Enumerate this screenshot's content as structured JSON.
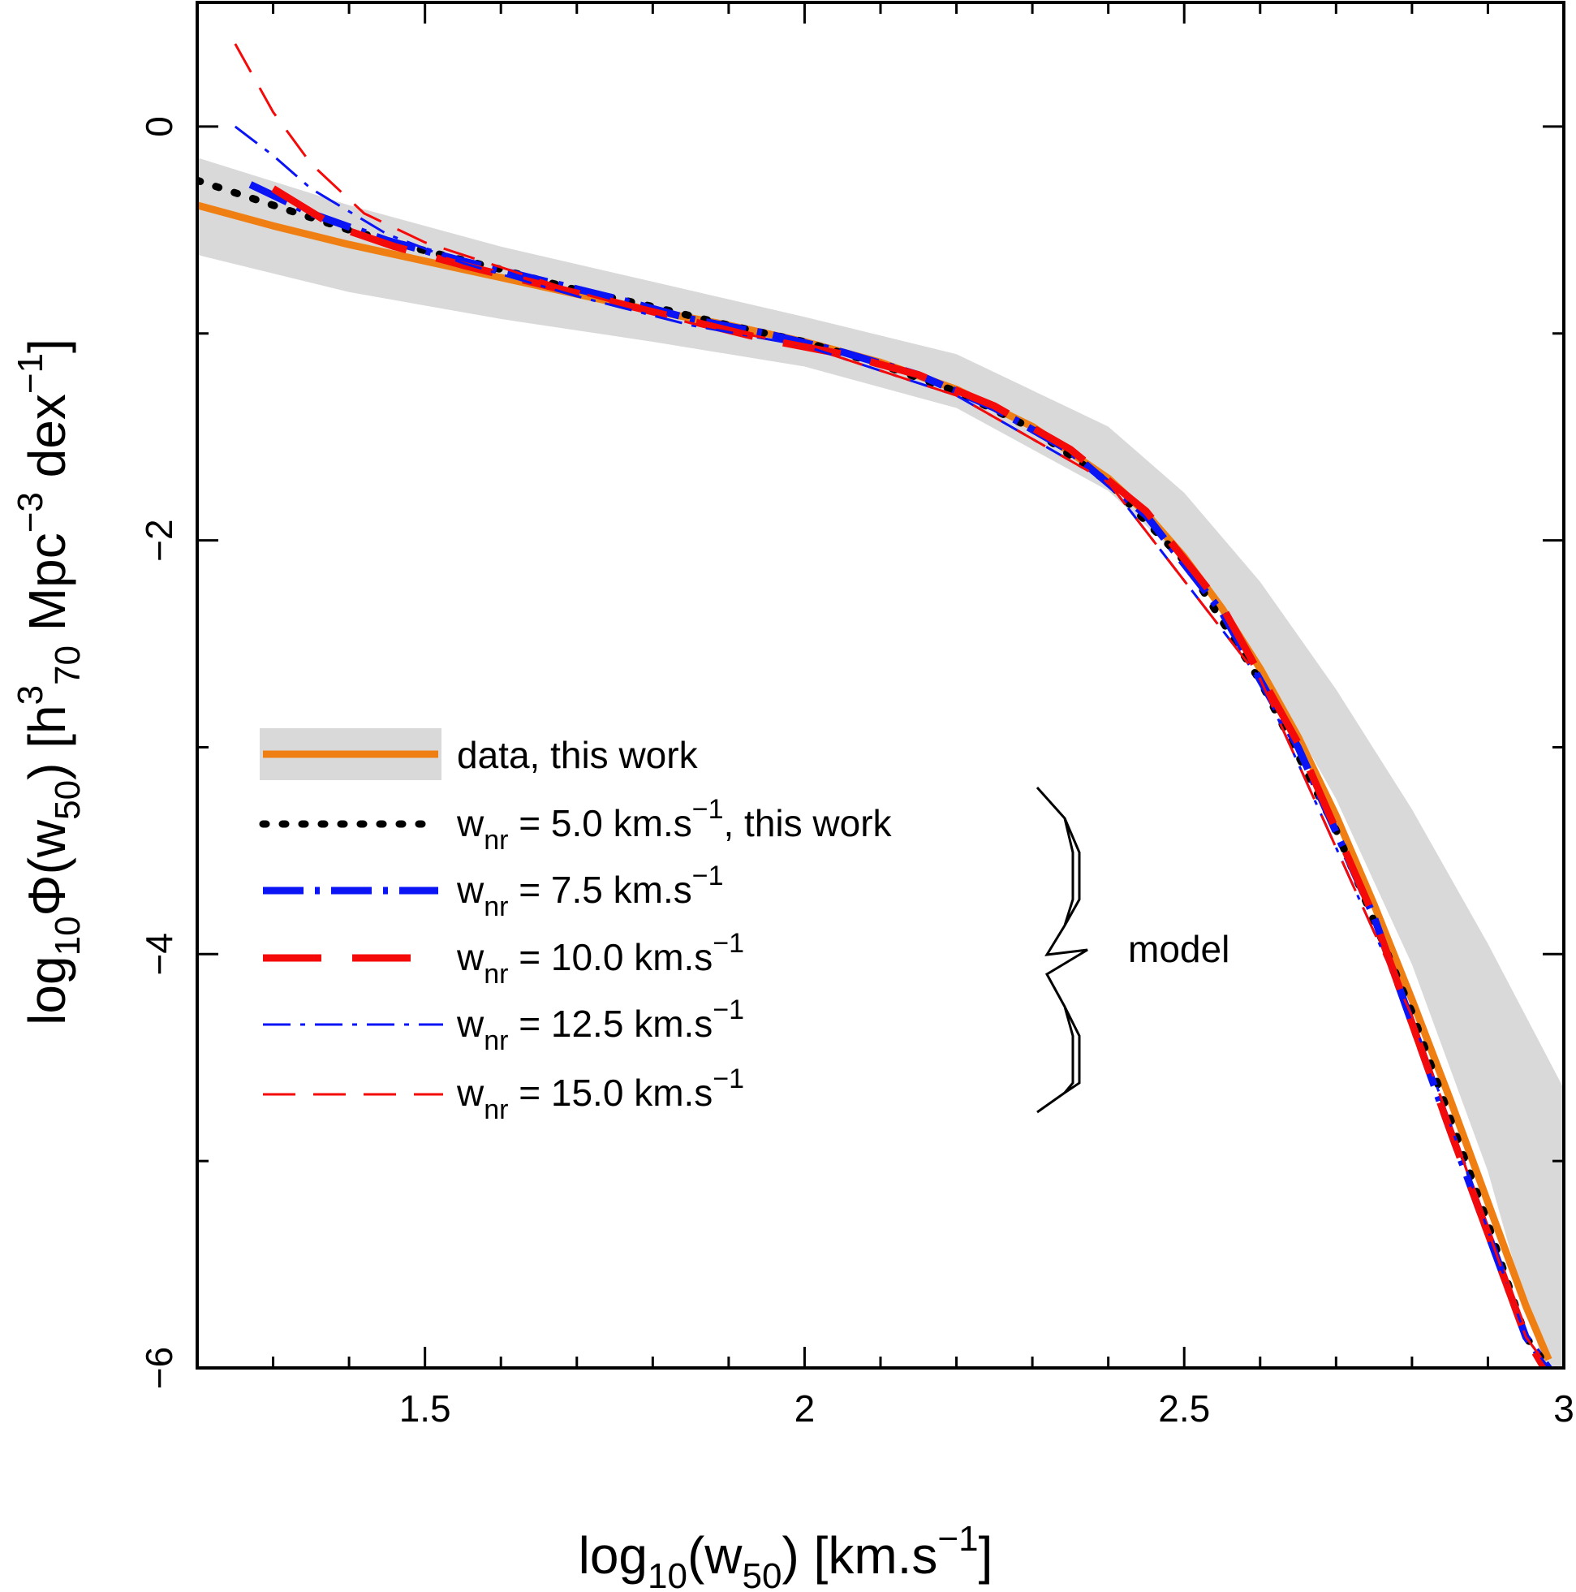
{
  "chart_data": {
    "type": "line",
    "title": "",
    "xlabel": {
      "main": "log",
      "sub": "10",
      "paren": "(w",
      "paren_sub": "50",
      "unit": ")  [km.s",
      "unit_sup": "−1",
      "close": "]"
    },
    "ylabel": {
      "main": "log",
      "sub": "10",
      "phi": "Φ(w",
      "phi_sub": "50",
      "unit1": ")  [h",
      "sup3": "3",
      "sub70": "70",
      "unit2": " Mpc",
      "sup_m3": "−3",
      "unit3": " dex",
      "sup_m1": "−1",
      "close": "]"
    },
    "xlim": [
      1.2,
      3.0
    ],
    "ylim": [
      -6.0,
      0.6
    ],
    "xticks": [
      {
        "v": 1.5,
        "label": "1.5"
      },
      {
        "v": 2.0,
        "label": "2"
      },
      {
        "v": 2.5,
        "label": "2.5"
      },
      {
        "v": 3.0,
        "label": "3"
      }
    ],
    "yticks": [
      {
        "v": 0,
        "label": "0"
      },
      {
        "v": -2,
        "label": "−2"
      },
      {
        "v": -4,
        "label": "−4"
      },
      {
        "v": -6,
        "label": "−6"
      }
    ],
    "x_minor_step": 0.1,
    "y_minor_step": 1.0,
    "band": {
      "name": "data, this work (uncertainty)",
      "color": "#d9d9d9",
      "x": [
        1.2,
        1.4,
        1.6,
        1.8,
        2.0,
        2.2,
        2.4,
        2.5,
        2.6,
        2.7,
        2.8,
        2.9,
        2.95,
        3.0
      ],
      "upper": [
        -0.15,
        -0.38,
        -0.58,
        -0.75,
        -0.92,
        -1.1,
        -1.45,
        -1.77,
        -2.2,
        -2.72,
        -3.3,
        -3.95,
        -4.3,
        -4.65
      ],
      "lower": [
        -0.62,
        -0.8,
        -0.93,
        -1.04,
        -1.16,
        -1.36,
        -1.76,
        -2.1,
        -2.6,
        -3.25,
        -4.05,
        -5.05,
        -5.7,
        -6.3
      ]
    },
    "series": [
      {
        "name": "data, this work",
        "color": "#f07f13",
        "style": "solid",
        "width": 9,
        "x": [
          1.2,
          1.3,
          1.4,
          1.5,
          1.6,
          1.7,
          1.8,
          1.9,
          2.0,
          2.1,
          2.2,
          2.3,
          2.4,
          2.45,
          2.5,
          2.55,
          2.6,
          2.65,
          2.7,
          2.75,
          2.8,
          2.85,
          2.9,
          2.95,
          2.98
        ],
        "y": [
          -0.38,
          -0.48,
          -0.57,
          -0.65,
          -0.73,
          -0.81,
          -0.89,
          -0.96,
          -1.04,
          -1.14,
          -1.27,
          -1.45,
          -1.7,
          -1.87,
          -2.08,
          -2.33,
          -2.62,
          -2.95,
          -3.33,
          -3.76,
          -4.22,
          -4.7,
          -5.2,
          -5.7,
          -5.96
        ]
      },
      {
        "name": "w_nr = 5.0 km.s−1, this work",
        "color": "#000000",
        "style": "dotted",
        "width": 9,
        "x": [
          1.2,
          1.3,
          1.4,
          1.5,
          1.6,
          1.7,
          1.8,
          1.9,
          2.0,
          2.1,
          2.2,
          2.3,
          2.4,
          2.5,
          2.6,
          2.7,
          2.8,
          2.9,
          2.95,
          2.99
        ],
        "y": [
          -0.26,
          -0.38,
          -0.5,
          -0.6,
          -0.69,
          -0.79,
          -0.87,
          -0.96,
          -1.04,
          -1.15,
          -1.28,
          -1.46,
          -1.72,
          -2.1,
          -2.68,
          -3.4,
          -4.28,
          -5.3,
          -5.85,
          -6.05
        ]
      },
      {
        "name": "w_nr = 7.5 km.s−1",
        "color": "#0a14f5",
        "style": "dashdot",
        "width": 9,
        "x": [
          1.27,
          1.35,
          1.45,
          1.55,
          1.65,
          1.75,
          1.85,
          1.95,
          2.05,
          2.15,
          2.25,
          2.35,
          2.45,
          2.55,
          2.65,
          2.75,
          2.85,
          2.95,
          2.99
        ],
        "y": [
          -0.28,
          -0.42,
          -0.55,
          -0.65,
          -0.74,
          -0.83,
          -0.93,
          -1.0,
          -1.09,
          -1.2,
          -1.36,
          -1.57,
          -1.88,
          -2.35,
          -3.0,
          -3.82,
          -4.85,
          -5.85,
          -6.05
        ]
      },
      {
        "name": "w_nr = 10.0 km.s−1",
        "color": "#f50a0a",
        "style": "longdash",
        "width": 9,
        "x": [
          1.3,
          1.38,
          1.46,
          1.55,
          1.65,
          1.75,
          1.85,
          1.95,
          2.05,
          2.15,
          2.25,
          2.35,
          2.45,
          2.55,
          2.65,
          2.75,
          2.85,
          2.95,
          2.99
        ],
        "y": [
          -0.3,
          -0.48,
          -0.58,
          -0.67,
          -0.76,
          -0.85,
          -0.94,
          -1.03,
          -1.1,
          -1.2,
          -1.35,
          -1.56,
          -1.86,
          -2.32,
          -2.98,
          -3.82,
          -4.85,
          -5.85,
          -6.1
        ]
      },
      {
        "name": "w_nr = 12.5 km.s−1",
        "color": "#0a14f5",
        "style": "dashdot-thin",
        "width": 3,
        "x": [
          1.25,
          1.3,
          1.35,
          1.45,
          1.55,
          1.7,
          1.85,
          2.0,
          2.2,
          2.4,
          2.6,
          2.8,
          2.95,
          2.99
        ],
        "y": [
          0.0,
          -0.14,
          -0.3,
          -0.52,
          -0.66,
          -0.82,
          -0.96,
          -1.06,
          -1.3,
          -1.72,
          -2.67,
          -4.3,
          -5.85,
          -6.05
        ]
      },
      {
        "name": "w_nr = 15.0 km.s−1",
        "color": "#f50a0a",
        "style": "dashed-thin",
        "width": 3,
        "x": [
          1.25,
          1.3,
          1.35,
          1.42,
          1.5,
          1.6,
          1.7,
          1.85,
          2.0,
          2.2,
          2.4,
          2.6,
          2.8,
          2.95,
          2.99
        ],
        "y": [
          0.4,
          0.07,
          -0.18,
          -0.42,
          -0.56,
          -0.68,
          -0.8,
          -0.95,
          -1.06,
          -1.3,
          -1.72,
          -2.67,
          -4.3,
          -5.85,
          -6.05
        ]
      }
    ],
    "legend": {
      "placement": "center-left",
      "entries": [
        {
          "text": "data, this work",
          "w": "",
          "sub": "",
          "tail": "",
          "sup": "",
          "after": ""
        },
        {
          "text": "",
          "w": "w",
          "sub": "nr",
          "tail": " = 5.0 km.s",
          "sup": "−1",
          "after": ", this work"
        },
        {
          "text": "",
          "w": "w",
          "sub": "nr",
          "tail": " = 7.5 km.s",
          "sup": "−1",
          "after": ""
        },
        {
          "text": "",
          "w": "w",
          "sub": "nr",
          "tail": " = 10.0 km.s",
          "sup": "−1",
          "after": ""
        },
        {
          "text": "",
          "w": "w",
          "sub": "nr",
          "tail": " = 12.5 km.s",
          "sup": "−1",
          "after": ""
        },
        {
          "text": "",
          "w": "w",
          "sub": "nr",
          "tail": " = 15.0 km.s",
          "sup": "−1",
          "after": ""
        }
      ],
      "brace_label": "model"
    }
  }
}
